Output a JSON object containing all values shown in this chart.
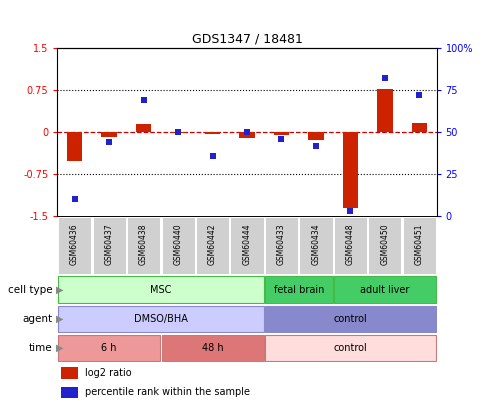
{
  "title": "GDS1347 / 18481",
  "samples": [
    "GSM60436",
    "GSM60437",
    "GSM60438",
    "GSM60440",
    "GSM60442",
    "GSM60444",
    "GSM60433",
    "GSM60434",
    "GSM60448",
    "GSM60450",
    "GSM60451"
  ],
  "log2_ratio": [
    -0.52,
    -0.09,
    0.14,
    -0.02,
    -0.04,
    -0.1,
    -0.05,
    -0.13,
    -1.35,
    0.78,
    0.16
  ],
  "percentile_rank": [
    10,
    44,
    69,
    50,
    36,
    50,
    46,
    42,
    3,
    82,
    72
  ],
  "ylim_left": [
    -1.5,
    1.5
  ],
  "ylim_right": [
    0,
    100
  ],
  "yticks_left": [
    -1.5,
    -0.75,
    0,
    0.75,
    1.5
  ],
  "yticks_right": [
    0,
    25,
    50,
    75,
    100
  ],
  "ytick_labels_left": [
    "-1.5",
    "-0.75",
    "0",
    "0.75",
    "1.5"
  ],
  "ytick_labels_right": [
    "0",
    "25",
    "50",
    "75",
    "100%"
  ],
  "hlines": [
    0.75,
    -0.75
  ],
  "bar_color": "#cc2200",
  "dot_color": "#2222cc",
  "zero_line_color": "#cc0000",
  "cell_type_groups": [
    {
      "label": "MSC",
      "start": 0,
      "end": 6,
      "color": "#ccffcc",
      "border": "#44bb44"
    },
    {
      "label": "fetal brain",
      "start": 6,
      "end": 8,
      "color": "#44cc66",
      "border": "#44bb44"
    },
    {
      "label": "adult liver",
      "start": 8,
      "end": 11,
      "color": "#44cc66",
      "border": "#44bb44"
    }
  ],
  "agent_groups": [
    {
      "label": "DMSO/BHA",
      "start": 0,
      "end": 6,
      "color": "#ccccff",
      "border": "#8888cc"
    },
    {
      "label": "control",
      "start": 6,
      "end": 11,
      "color": "#8888cc",
      "border": "#8888cc"
    }
  ],
  "time_groups": [
    {
      "label": "6 h",
      "start": 0,
      "end": 3,
      "color": "#ee9999",
      "border": "#cc7777"
    },
    {
      "label": "48 h",
      "start": 3,
      "end": 6,
      "color": "#dd7777",
      "border": "#cc7777"
    },
    {
      "label": "control",
      "start": 6,
      "end": 11,
      "color": "#ffdddd",
      "border": "#cc7777"
    }
  ],
  "legend_items": [
    {
      "color": "#cc2200",
      "label": "log2 ratio"
    },
    {
      "color": "#2222cc",
      "label": "percentile rank within the sample"
    }
  ],
  "bar_width": 0.45,
  "dot_size": 16
}
